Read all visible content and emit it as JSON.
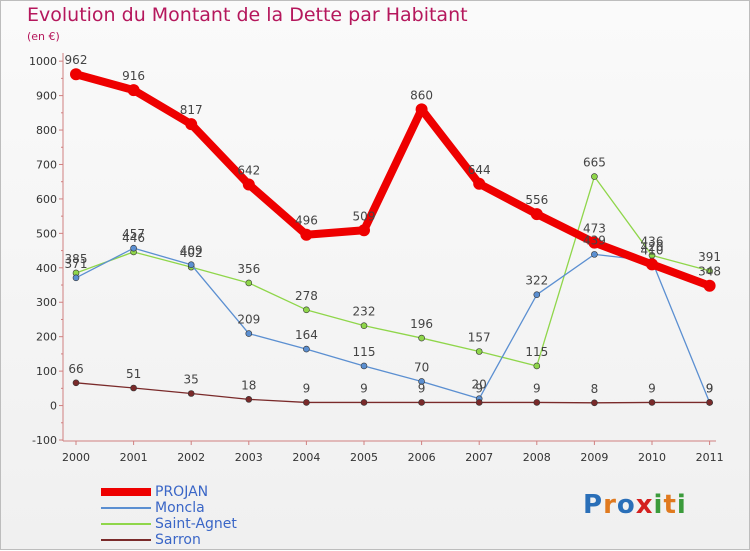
{
  "title": "Evolution du Montant de la Dette par Habitant",
  "subtitle": "(en €)",
  "logo": {
    "text": "Proxiti",
    "colors": [
      "#2a6fb8",
      "#e07a1f",
      "#2a6fb8",
      "#d4201f",
      "#3b9b3b",
      "#e07a1f",
      "#3b9b3b"
    ]
  },
  "chart_data": {
    "type": "line",
    "title": "Evolution du Montant de la Dette par Habitant",
    "subtitle": "(en €)",
    "x": [
      "2000",
      "2001",
      "2002",
      "2003",
      "2004",
      "2005",
      "2006",
      "2007",
      "2008",
      "2009",
      "2010",
      "2011"
    ],
    "y_ticks": [
      "-100",
      "0",
      "100",
      "200",
      "300",
      "400",
      "500",
      "600",
      "700",
      "800",
      "900",
      "1000"
    ],
    "ylim": [
      -100,
      1000
    ],
    "grid": false,
    "legend_position": "bottom-left",
    "series": [
      {
        "name": "PROJAN",
        "color": "#ee0000",
        "values": [
          962,
          916,
          817,
          642,
          496,
          509,
          860,
          644,
          556,
          473,
          410,
          348
        ],
        "labels": [
          "962",
          "916",
          "817",
          "642",
          "496",
          "509",
          "860",
          "644",
          "556",
          "473",
          "410",
          "348"
        ]
      },
      {
        "name": "Moncla",
        "color": "#5b8fd1",
        "values": [
          371,
          457,
          409,
          209,
          164,
          115,
          70,
          20,
          322,
          439,
          420,
          9
        ],
        "labels": [
          "371",
          "457",
          "409",
          "209",
          "164",
          "115",
          "70",
          "20",
          "322",
          "439",
          "420",
          "9"
        ]
      },
      {
        "name": "Saint-Agnet",
        "color": "#8fd64a",
        "values": [
          385,
          446,
          402,
          356,
          278,
          232,
          196,
          157,
          115,
          665,
          436,
          391
        ],
        "labels": [
          "385",
          "446",
          "402",
          "356",
          "278",
          "232",
          "196",
          "157",
          "115",
          "665",
          "436",
          "391"
        ]
      },
      {
        "name": "Sarron",
        "color": "#7a2a2a",
        "values": [
          66,
          51,
          35,
          18,
          9,
          9,
          9,
          9,
          9,
          8,
          9,
          9
        ],
        "labels": [
          "66",
          "51",
          "35",
          "18",
          "9",
          "9",
          "9",
          "9",
          "9",
          "8",
          "9",
          "9"
        ]
      }
    ]
  }
}
